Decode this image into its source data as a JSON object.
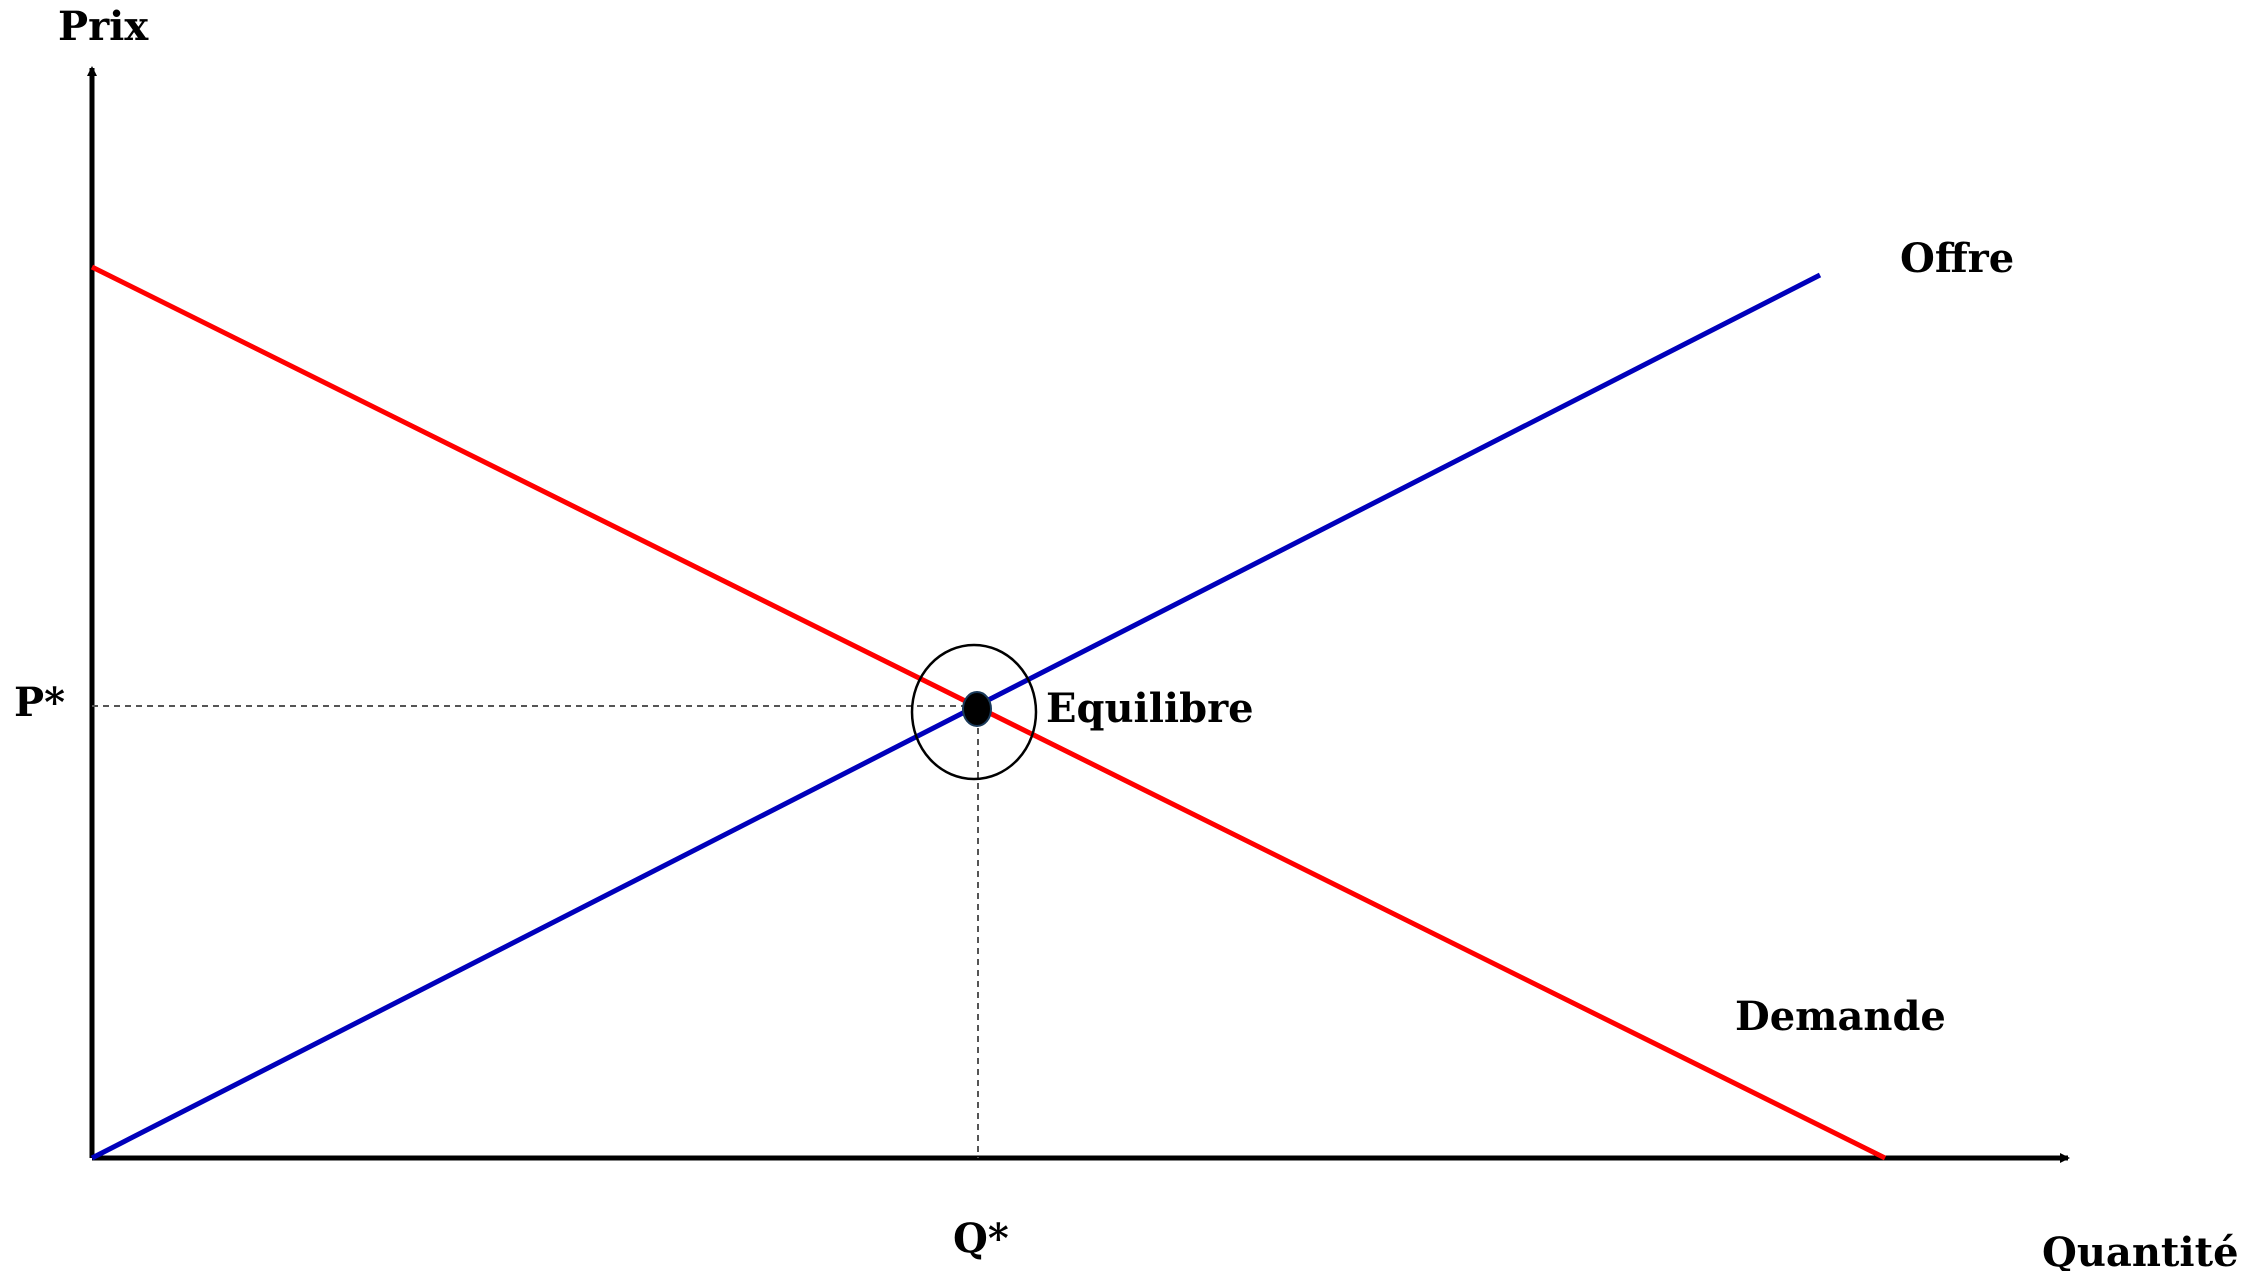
{
  "labels": {
    "y_axis": "Prix",
    "x_axis": "Quantité",
    "p_star": "P*",
    "q_star": "Q*",
    "supply": "Offre",
    "demand": "Demande",
    "equilibrium": "Equilibre"
  },
  "colors": {
    "supply": "#0000bb",
    "demand": "#ff0000",
    "axis": "#000000",
    "guide": "#555555"
  }
}
